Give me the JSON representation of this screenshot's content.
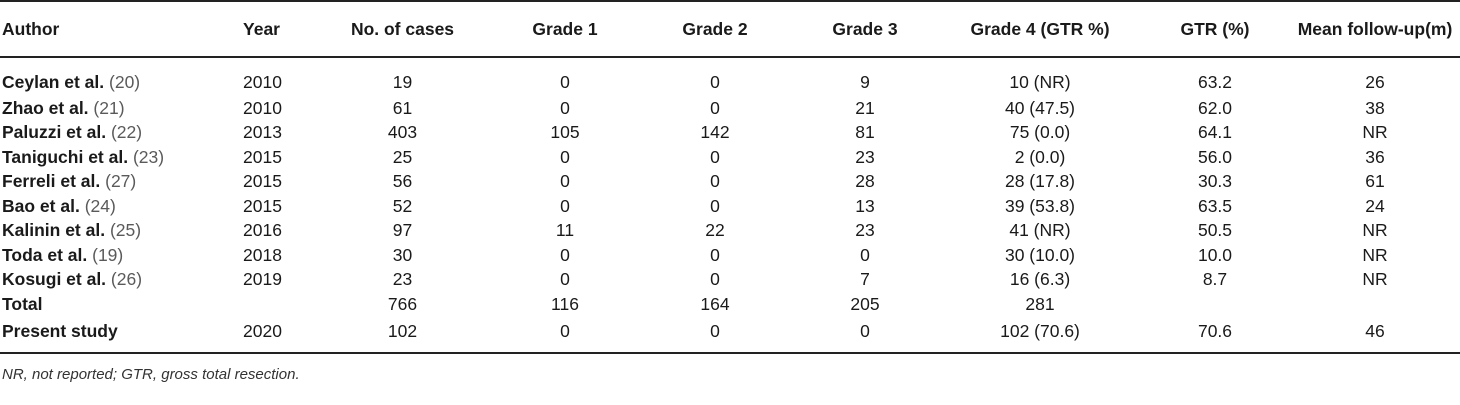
{
  "headers": {
    "author": "Author",
    "year": "Year",
    "cases": "No. of cases",
    "grade1": "Grade 1",
    "grade2": "Grade 2",
    "grade3": "Grade 3",
    "grade4": "Grade 4 (GTR %)",
    "gtr": "GTR (%)",
    "followup": "Mean follow-up(m)"
  },
  "rows": [
    {
      "author": "Ceylan et al.",
      "ref": "(20)",
      "year": "2010",
      "cases": "19",
      "grade1": "0",
      "grade2": "0",
      "grade3": "9",
      "grade4": "10 (NR)",
      "gtr": "63.2",
      "followup": "26"
    },
    {
      "author": "Zhao et al.",
      "ref": "(21)",
      "year": "2010",
      "cases": "61",
      "grade1": "0",
      "grade2": "0",
      "grade3": "21",
      "grade4": "40 (47.5)",
      "gtr": "62.0",
      "followup": "38"
    },
    {
      "author": "Paluzzi et al.",
      "ref": "(22)",
      "year": "2013",
      "cases": "403",
      "grade1": "105",
      "grade2": "142",
      "grade3": "81",
      "grade4": "75 (0.0)",
      "gtr": "64.1",
      "followup": "NR"
    },
    {
      "author": "Taniguchi et al.",
      "ref": "(23)",
      "year": "2015",
      "cases": "25",
      "grade1": "0",
      "grade2": "0",
      "grade3": "23",
      "grade4": "2 (0.0)",
      "gtr": "56.0",
      "followup": "36"
    },
    {
      "author": "Ferreli et al.",
      "ref": "(27)",
      "year": "2015",
      "cases": "56",
      "grade1": "0",
      "grade2": "0",
      "grade3": "28",
      "grade4": "28 (17.8)",
      "gtr": "30.3",
      "followup": "61"
    },
    {
      "author": "Bao et al.",
      "ref": "(24)",
      "year": "2015",
      "cases": "52",
      "grade1": "0",
      "grade2": "0",
      "grade3": "13",
      "grade4": "39 (53.8)",
      "gtr": "63.5",
      "followup": "24"
    },
    {
      "author": "Kalinin et al.",
      "ref": "(25)",
      "year": "2016",
      "cases": "97",
      "grade1": "11",
      "grade2": "22",
      "grade3": "23",
      "grade4": "41 (NR)",
      "gtr": "50.5",
      "followup": "NR"
    },
    {
      "author": "Toda et al.",
      "ref": "(19)",
      "year": "2018",
      "cases": "30",
      "grade1": "0",
      "grade2": "0",
      "grade3": "0",
      "grade4": "30 (10.0)",
      "gtr": "10.0",
      "followup": "NR"
    },
    {
      "author": "Kosugi et al.",
      "ref": "(26)",
      "year": "2019",
      "cases": "23",
      "grade1": "0",
      "grade2": "0",
      "grade3": "7",
      "grade4": "16 (6.3)",
      "gtr": "8.7",
      "followup": "NR"
    },
    {
      "author": "Total",
      "ref": "",
      "year": "",
      "cases": "766",
      "grade1": "116",
      "grade2": "164",
      "grade3": "205",
      "grade4": "281",
      "gtr": "",
      "followup": ""
    },
    {
      "author": "Present study",
      "ref": "",
      "year": "2020",
      "cases": "102",
      "grade1": "0",
      "grade2": "0",
      "grade3": "0",
      "grade4": "102 (70.6)",
      "gtr": "70.6",
      "followup": "46"
    }
  ],
  "footnote": "NR, not reported; GTR, gross total resection."
}
